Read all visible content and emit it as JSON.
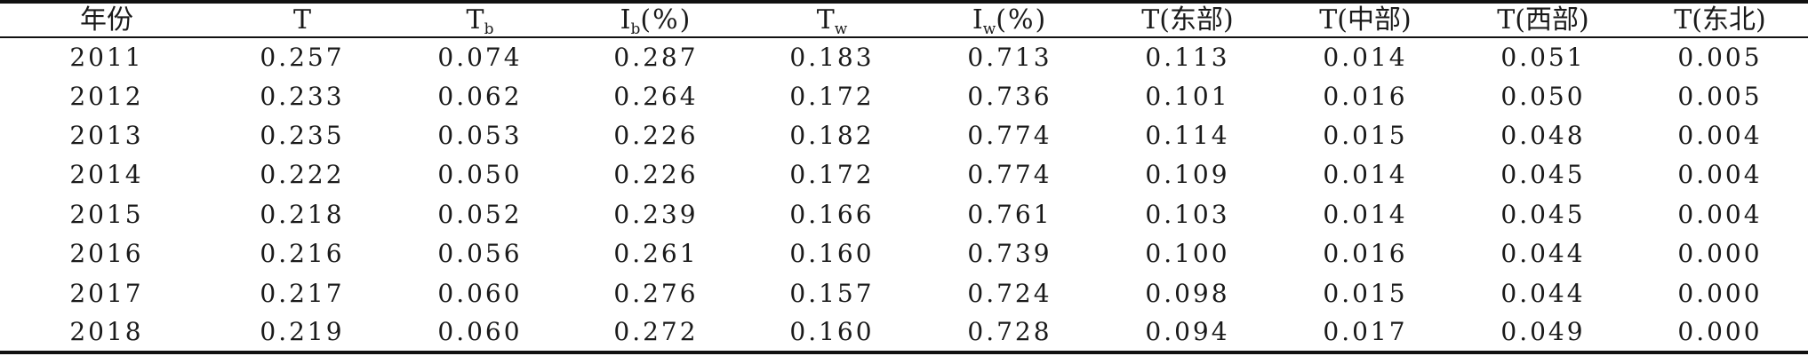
{
  "table": {
    "headers": [
      {
        "main": "年份",
        "sub": "",
        "suffix": ""
      },
      {
        "main": "T",
        "sub": "",
        "suffix": ""
      },
      {
        "main": "T",
        "sub": "b",
        "suffix": ""
      },
      {
        "main": "I",
        "sub": "b",
        "suffix": "(%)"
      },
      {
        "main": "T",
        "sub": "w",
        "suffix": ""
      },
      {
        "main": "I",
        "sub": "w",
        "suffix": "(%)"
      },
      {
        "main": "T(东部)",
        "sub": "",
        "suffix": ""
      },
      {
        "main": "T(中部)",
        "sub": "",
        "suffix": ""
      },
      {
        "main": "T(西部)",
        "sub": "",
        "suffix": ""
      },
      {
        "main": "T(东北)",
        "sub": "",
        "suffix": ""
      }
    ],
    "rows": [
      [
        "2011",
        "0.257",
        "0.074",
        "0.287",
        "0.183",
        "0.713",
        "0.113",
        "0.014",
        "0.051",
        "0.005"
      ],
      [
        "2012",
        "0.233",
        "0.062",
        "0.264",
        "0.172",
        "0.736",
        "0.101",
        "0.016",
        "0.050",
        "0.005"
      ],
      [
        "2013",
        "0.235",
        "0.053",
        "0.226",
        "0.182",
        "0.774",
        "0.114",
        "0.015",
        "0.048",
        "0.004"
      ],
      [
        "2014",
        "0.222",
        "0.050",
        "0.226",
        "0.172",
        "0.774",
        "0.109",
        "0.014",
        "0.045",
        "0.004"
      ],
      [
        "2015",
        "0.218",
        "0.052",
        "0.239",
        "0.166",
        "0.761",
        "0.103",
        "0.014",
        "0.045",
        "0.004"
      ],
      [
        "2016",
        "0.216",
        "0.056",
        "0.261",
        "0.160",
        "0.739",
        "0.100",
        "0.016",
        "0.044",
        "0.000"
      ],
      [
        "2017",
        "0.217",
        "0.060",
        "0.276",
        "0.157",
        "0.724",
        "0.098",
        "0.015",
        "0.044",
        "0.000"
      ],
      [
        "2018",
        "0.219",
        "0.060",
        "0.272",
        "0.160",
        "0.728",
        "0.094",
        "0.017",
        "0.049",
        "0.000"
      ]
    ]
  }
}
